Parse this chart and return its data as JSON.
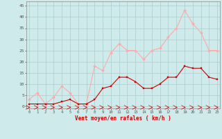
{
  "x": [
    0,
    1,
    2,
    3,
    4,
    5,
    6,
    7,
    8,
    9,
    10,
    11,
    12,
    13,
    14,
    15,
    16,
    17,
    18,
    19,
    20,
    21,
    22,
    23
  ],
  "vent_moyen": [
    1,
    1,
    1,
    1,
    2,
    3,
    1,
    1,
    3,
    8,
    9,
    13,
    13,
    11,
    8,
    8,
    10,
    13,
    13,
    18,
    17,
    17,
    13,
    12
  ],
  "vent_rafales": [
    3,
    6,
    1,
    4,
    9,
    6,
    1,
    1,
    18,
    16,
    24,
    28,
    25,
    25,
    21,
    25,
    26,
    31,
    35,
    43,
    37,
    33,
    25,
    25
  ],
  "color_moyen": "#cc0000",
  "color_rafales": "#ffaaaa",
  "bg_color": "#ceeaea",
  "grid_color": "#aacccc",
  "xlabel": "Vent moyen/en rafales ( km/h )",
  "yticks": [
    0,
    5,
    10,
    15,
    20,
    25,
    30,
    35,
    40,
    45
  ],
  "xlim": [
    -0.3,
    23.3
  ],
  "ylim": [
    -1,
    47
  ]
}
